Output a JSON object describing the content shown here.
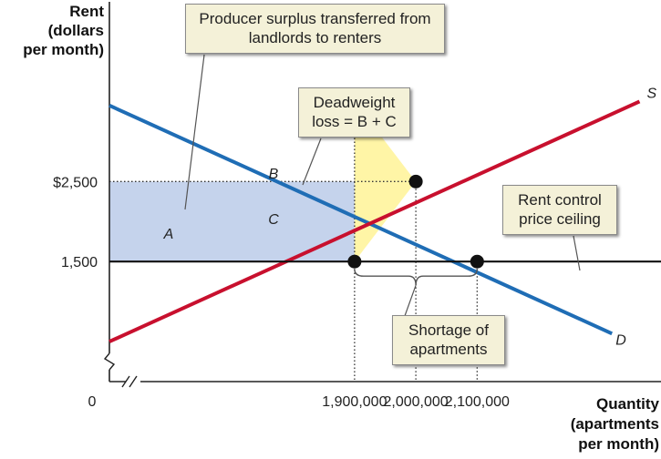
{
  "chart_data": {
    "type": "line",
    "y_axis_label": [
      "Rent",
      "(dollars",
      "per month)"
    ],
    "x_axis_label": [
      "Quantity",
      "(apartments",
      "per month)"
    ],
    "x_range": [
      1500000,
      2400000
    ],
    "y_range": [
      0,
      4700
    ],
    "origin_label": "0",
    "y_ticks": [
      {
        "value": 2500,
        "label": "$2,500"
      },
      {
        "value": 1500,
        "label": "1,500"
      }
    ],
    "x_ticks": [
      {
        "value": 1900000,
        "label": "1,900,000"
      },
      {
        "value": 2000000,
        "label": "2,000,000"
      },
      {
        "value": 2100000,
        "label": "2,100,000"
      }
    ],
    "series": [
      {
        "name": "D",
        "color": "#1f6db5",
        "points": [
          [
            1500000,
            3450
          ],
          [
            2320000,
            600
          ]
        ]
      },
      {
        "name": "S",
        "color": "#c8102e",
        "points": [
          [
            1500000,
            500
          ],
          [
            2365000,
            3500
          ]
        ]
      },
      {
        "name": "Rent control price ceiling",
        "color": "#111111",
        "points": [
          [
            1500000,
            1500
          ],
          [
            2400000,
            1500
          ]
        ]
      }
    ],
    "key_points": [
      {
        "x": 1900000,
        "y": 3500
      },
      {
        "x": 2000000,
        "y": 2500
      },
      {
        "x": 1900000,
        "y": 1500
      },
      {
        "x": 2100000,
        "y": 1500
      }
    ],
    "areas": [
      {
        "label": "A",
        "color": "#c5d3ec",
        "polygon": [
          [
            1500000,
            1500
          ],
          [
            1900000,
            1500
          ],
          [
            1900000,
            2500
          ],
          [
            1500000,
            2500
          ]
        ]
      },
      {
        "label": "B",
        "color": "#fff5a6",
        "polygon": [
          [
            1900000,
            2500
          ],
          [
            2000000,
            2500
          ],
          [
            1900000,
            3500
          ]
        ]
      },
      {
        "label": "C",
        "color": "#fff5a6",
        "polygon": [
          [
            1900000,
            1500
          ],
          [
            2000000,
            2500
          ],
          [
            1900000,
            2500
          ]
        ]
      }
    ],
    "annotations": {
      "producer_surplus": "Producer surplus transferred from landlords to renters",
      "deadweight_loss": "Deadweight loss = B + C",
      "rent_control": "Rent control price ceiling",
      "shortage": "Shortage of apartments"
    }
  }
}
